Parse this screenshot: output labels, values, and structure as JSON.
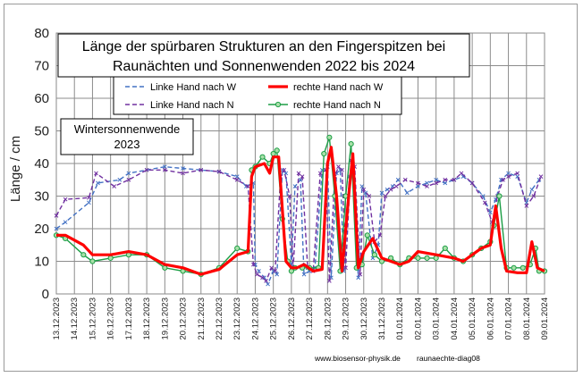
{
  "chart_data": {
    "type": "line",
    "title_line1": "Länge der spürbaren Strukturen an den Fingerspitzen bei",
    "title_line2": "Raunächten  und Sonnenwenden 2022 bis 2024",
    "annotation_line1": "Wintersonnenwende",
    "annotation_line2": "2023",
    "ylabel": "Länge / cm",
    "ylim": [
      0,
      80
    ],
    "yticks": [
      0,
      10,
      20,
      30,
      40,
      50,
      60,
      70,
      80
    ],
    "x_tick_labels": [
      "13.12.2023",
      "14.12.2023",
      "15.12.2023",
      "16.12.2023",
      "17.12.2023",
      "18.12.2023",
      "19.12.2023",
      "20.12.2023",
      "21.12.2023",
      "22.12.2023",
      "23.12.2023",
      "24.12.2023",
      "25.12.2023",
      "26.12.2023",
      "27.12.2023",
      "28.12.2023",
      "29.12.2023",
      "30.12.2023",
      "31.12.2023",
      "01.01.2024",
      "02.01.2024",
      "03.01.2024",
      "04.01.2024",
      "05.01.2024",
      "06.01.2024",
      "07.01.2024",
      "08.01.2024",
      "09.01.2024"
    ],
    "grid": true,
    "legend_position": "top-center",
    "series": [
      {
        "name": "Linke Hand nach W",
        "color": "#4472c4",
        "style": "dashed",
        "marker": "x",
        "points": [
          [
            0,
            20
          ],
          [
            0.5,
            22
          ],
          [
            1.8,
            28
          ],
          [
            2.3,
            34
          ],
          [
            3.5,
            35
          ],
          [
            4,
            37
          ],
          [
            5,
            38
          ],
          [
            6,
            39
          ],
          [
            7,
            38.5
          ],
          [
            8,
            38
          ],
          [
            9,
            37.5
          ],
          [
            10,
            36
          ],
          [
            10.5,
            33
          ],
          [
            10.9,
            34
          ],
          [
            11,
            9
          ],
          [
            11.2,
            7
          ],
          [
            11.5,
            5
          ],
          [
            11.7,
            3
          ],
          [
            12,
            7
          ],
          [
            12.2,
            6
          ],
          [
            12.5,
            38
          ],
          [
            12.7,
            37
          ],
          [
            13,
            9
          ],
          [
            13.2,
            33
          ],
          [
            13.5,
            35
          ],
          [
            13.7,
            6
          ],
          [
            14,
            7
          ],
          [
            14.3,
            8
          ],
          [
            14.7,
            38
          ],
          [
            15,
            39
          ],
          [
            15.2,
            5
          ],
          [
            15.5,
            37
          ],
          [
            15.7,
            38
          ],
          [
            15.9,
            7
          ],
          [
            16.2,
            36
          ],
          [
            16.4,
            40
          ],
          [
            16.7,
            5
          ],
          [
            16.9,
            33
          ],
          [
            17.1,
            31
          ],
          [
            17.5,
            11
          ],
          [
            17.8,
            15
          ],
          [
            18,
            31
          ],
          [
            18.3,
            32
          ],
          [
            18.6,
            33
          ],
          [
            18.9,
            35
          ],
          [
            19.4,
            31
          ],
          [
            20,
            33
          ],
          [
            20.5,
            34
          ],
          [
            21,
            35
          ],
          [
            21.5,
            34
          ],
          [
            22,
            35
          ],
          [
            22.5,
            36
          ],
          [
            23,
            34
          ],
          [
            23.6,
            30
          ],
          [
            24,
            25
          ],
          [
            24.3,
            29
          ],
          [
            24.6,
            35
          ],
          [
            25,
            37
          ],
          [
            25.5,
            36
          ],
          [
            26,
            28
          ],
          [
            26.3,
            32
          ],
          [
            26.7,
            35
          ]
        ]
      },
      {
        "name": "rechte Hand nach W",
        "color": "#ff0000",
        "style": "solid-thick",
        "marker": "none",
        "points": [
          [
            0,
            18
          ],
          [
            0.5,
            18
          ],
          [
            1.5,
            15
          ],
          [
            2,
            12
          ],
          [
            3,
            12
          ],
          [
            4,
            13
          ],
          [
            5,
            12
          ],
          [
            6,
            9
          ],
          [
            7,
            8
          ],
          [
            8,
            6
          ],
          [
            9,
            7.5
          ],
          [
            10,
            12
          ],
          [
            10.6,
            13
          ],
          [
            10.8,
            36
          ],
          [
            11,
            39
          ],
          [
            11.5,
            40
          ],
          [
            11.8,
            37
          ],
          [
            12,
            42
          ],
          [
            12.3,
            42
          ],
          [
            12.7,
            10
          ],
          [
            13,
            8
          ],
          [
            13.3,
            8
          ],
          [
            13.7,
            9
          ],
          [
            14.2,
            7
          ],
          [
            14.7,
            7.5
          ],
          [
            15,
            40
          ],
          [
            15.2,
            45
          ],
          [
            15.5,
            30
          ],
          [
            15.8,
            7
          ],
          [
            16.2,
            32
          ],
          [
            16.4,
            43
          ],
          [
            16.7,
            8
          ],
          [
            17,
            13
          ],
          [
            17.5,
            17
          ],
          [
            18,
            11
          ],
          [
            18.5,
            10
          ],
          [
            19,
            9
          ],
          [
            19.5,
            10
          ],
          [
            20,
            13
          ],
          [
            21,
            12
          ],
          [
            22,
            11
          ],
          [
            22.5,
            10
          ],
          [
            23,
            12
          ],
          [
            23.5,
            14
          ],
          [
            24,
            15
          ],
          [
            24.3,
            27
          ],
          [
            24.6,
            14
          ],
          [
            24.9,
            7
          ],
          [
            25.5,
            6.5
          ],
          [
            26,
            6.5
          ],
          [
            26.3,
            16
          ],
          [
            26.6,
            8
          ],
          [
            27,
            7
          ]
        ]
      },
      {
        "name": "Linke Hand nach N",
        "color": "#7030a0",
        "style": "dashed",
        "marker": "x",
        "points": [
          [
            0,
            24
          ],
          [
            0.5,
            29
          ],
          [
            1.8,
            29.5
          ],
          [
            2.2,
            37
          ],
          [
            3.2,
            33
          ],
          [
            4,
            35
          ],
          [
            5,
            38
          ],
          [
            6,
            38
          ],
          [
            7,
            37
          ],
          [
            8,
            38
          ],
          [
            9,
            37.5
          ],
          [
            10,
            35
          ],
          [
            10.6,
            33
          ],
          [
            10.9,
            9
          ],
          [
            11.1,
            6
          ],
          [
            11.4,
            5
          ],
          [
            11.6,
            4
          ],
          [
            11.9,
            8
          ],
          [
            12.1,
            7
          ],
          [
            12.4,
            36
          ],
          [
            12.6,
            38
          ],
          [
            12.9,
            30
          ],
          [
            13.1,
            8
          ],
          [
            13.4,
            37
          ],
          [
            13.6,
            36
          ],
          [
            13.9,
            8
          ],
          [
            14.2,
            7
          ],
          [
            14.6,
            37
          ],
          [
            14.9,
            38
          ],
          [
            15.1,
            4
          ],
          [
            15.4,
            36
          ],
          [
            15.6,
            39
          ],
          [
            15.8,
            38
          ],
          [
            16,
            8
          ],
          [
            16.3,
            41
          ],
          [
            16.5,
            39
          ],
          [
            16.8,
            6
          ],
          [
            17,
            32
          ],
          [
            17.3,
            30
          ],
          [
            17.6,
            16
          ],
          [
            17.9,
            18
          ],
          [
            18.2,
            30
          ],
          [
            18.5,
            32
          ],
          [
            18.8,
            33
          ],
          [
            19.3,
            35
          ],
          [
            20,
            34
          ],
          [
            20.5,
            33
          ],
          [
            21,
            34
          ],
          [
            21.5,
            35
          ],
          [
            22,
            35
          ],
          [
            22.4,
            37
          ],
          [
            23,
            34
          ],
          [
            23.7,
            28
          ],
          [
            24.1,
            22
          ],
          [
            24.4,
            30
          ],
          [
            24.7,
            35
          ],
          [
            25,
            36
          ],
          [
            25.5,
            37
          ],
          [
            26,
            27
          ],
          [
            26.4,
            30
          ],
          [
            26.8,
            36
          ]
        ]
      },
      {
        "name": "rechte Hand nach N",
        "color": "#1d9e46",
        "style": "solid",
        "marker": "circle",
        "points": [
          [
            0,
            18
          ],
          [
            0.5,
            17
          ],
          [
            1.5,
            12
          ],
          [
            2,
            10
          ],
          [
            3,
            11
          ],
          [
            4,
            12
          ],
          [
            5,
            12
          ],
          [
            6,
            8
          ],
          [
            7,
            7
          ],
          [
            8,
            6
          ],
          [
            9,
            8
          ],
          [
            10,
            14
          ],
          [
            10.6,
            13
          ],
          [
            10.8,
            38
          ],
          [
            11,
            39
          ],
          [
            11.4,
            42
          ],
          [
            11.8,
            40
          ],
          [
            12,
            43
          ],
          [
            12.2,
            44
          ],
          [
            12.5,
            23
          ],
          [
            12.8,
            10
          ],
          [
            13,
            7
          ],
          [
            13.2,
            8
          ],
          [
            13.6,
            8
          ],
          [
            14,
            8
          ],
          [
            14.5,
            8
          ],
          [
            14.8,
            43
          ],
          [
            15.1,
            48
          ],
          [
            15.4,
            30
          ],
          [
            15.7,
            7
          ],
          [
            16,
            30
          ],
          [
            16.3,
            46
          ],
          [
            16.6,
            8
          ],
          [
            16.9,
            9
          ],
          [
            17.2,
            18
          ],
          [
            17.6,
            12
          ],
          [
            18,
            10
          ],
          [
            18.5,
            11
          ],
          [
            19,
            9
          ],
          [
            19.5,
            11
          ],
          [
            20,
            11
          ],
          [
            20.5,
            11
          ],
          [
            21,
            11
          ],
          [
            21.5,
            14
          ],
          [
            22,
            11
          ],
          [
            22.5,
            10
          ],
          [
            23,
            12
          ],
          [
            23.5,
            14
          ],
          [
            24,
            16
          ],
          [
            24.2,
            21
          ],
          [
            24.5,
            30
          ],
          [
            24.9,
            8
          ],
          [
            25.3,
            8
          ],
          [
            25.8,
            8
          ],
          [
            26.2,
            9
          ],
          [
            26.5,
            14
          ],
          [
            26.7,
            7
          ],
          [
            27,
            7
          ]
        ]
      }
    ]
  },
  "footer": {
    "website": "www.biosensor-physik.de",
    "diagram_id": "raunaechte-diag08"
  }
}
